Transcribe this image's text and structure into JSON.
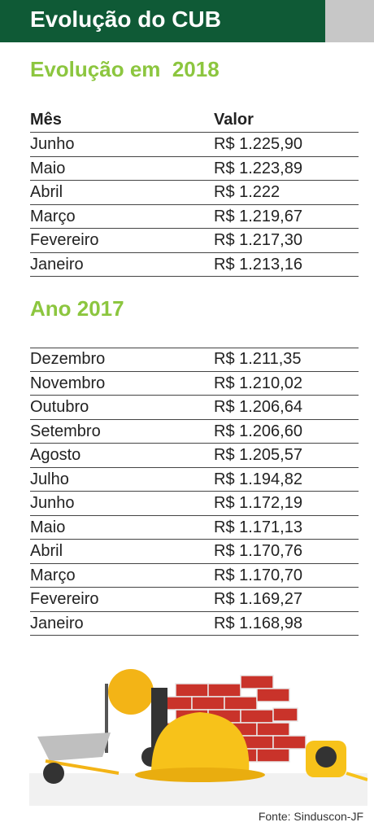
{
  "header": {
    "title": "Evolução do CUB"
  },
  "sections": [
    {
      "title": "Evolução em  2018",
      "columns": [
        "Mês",
        "Valor"
      ],
      "rows": [
        [
          "Junho",
          "R$ 1.225,90"
        ],
        [
          "Maio",
          "R$ 1.223,89"
        ],
        [
          "Abril",
          "R$ 1.222"
        ],
        [
          "Março",
          "R$ 1.219,67"
        ],
        [
          "Fevereiro",
          "R$ 1.217,30"
        ],
        [
          "Janeiro",
          "R$ 1.213,16"
        ]
      ]
    },
    {
      "title": "Ano 2017",
      "rows": [
        [
          "Dezembro",
          "R$ 1.211,35"
        ],
        [
          "Novembro",
          "R$ 1.210,02"
        ],
        [
          "Outubro",
          "R$ 1.206,64"
        ],
        [
          "Setembro",
          "R$ 1.206,60"
        ],
        [
          "Agosto",
          "R$ 1.205,57"
        ],
        [
          "Julho",
          "R$ 1.194,82"
        ],
        [
          "Junho",
          "R$ 1.172,19"
        ],
        [
          "Maio",
          "R$ 1.171,13"
        ],
        [
          "Abril",
          "R$ 1.170,76"
        ],
        [
          "Março",
          "R$ 1.170,70"
        ],
        [
          "Fevereiro",
          "R$ 1.169,27"
        ],
        [
          "Janeiro",
          "R$ 1.168,98"
        ]
      ]
    }
  ],
  "source": "Fonte: Sinduscon-JF"
}
